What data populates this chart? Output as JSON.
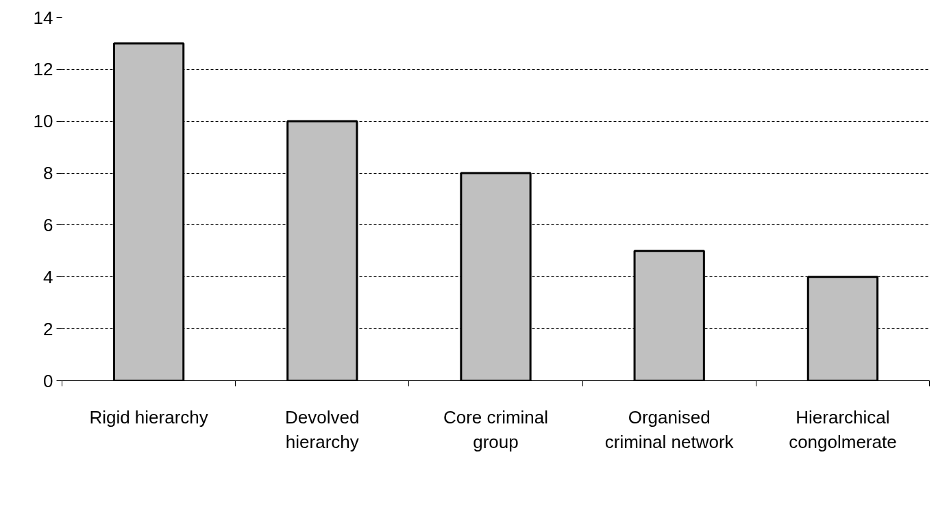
{
  "chart_data": {
    "type": "bar",
    "categories": [
      "Rigid hierarchy",
      "Devolved hierarchy",
      "Core criminal group",
      "Organised criminal network",
      "Hierarchical congolmerate"
    ],
    "values": [
      13,
      10,
      8,
      5,
      4
    ],
    "color": "#c0c0c0",
    "ylim": [
      0,
      14
    ],
    "yticks": [
      0,
      2,
      4,
      6,
      8,
      10,
      12,
      14
    ],
    "grid": "y"
  }
}
